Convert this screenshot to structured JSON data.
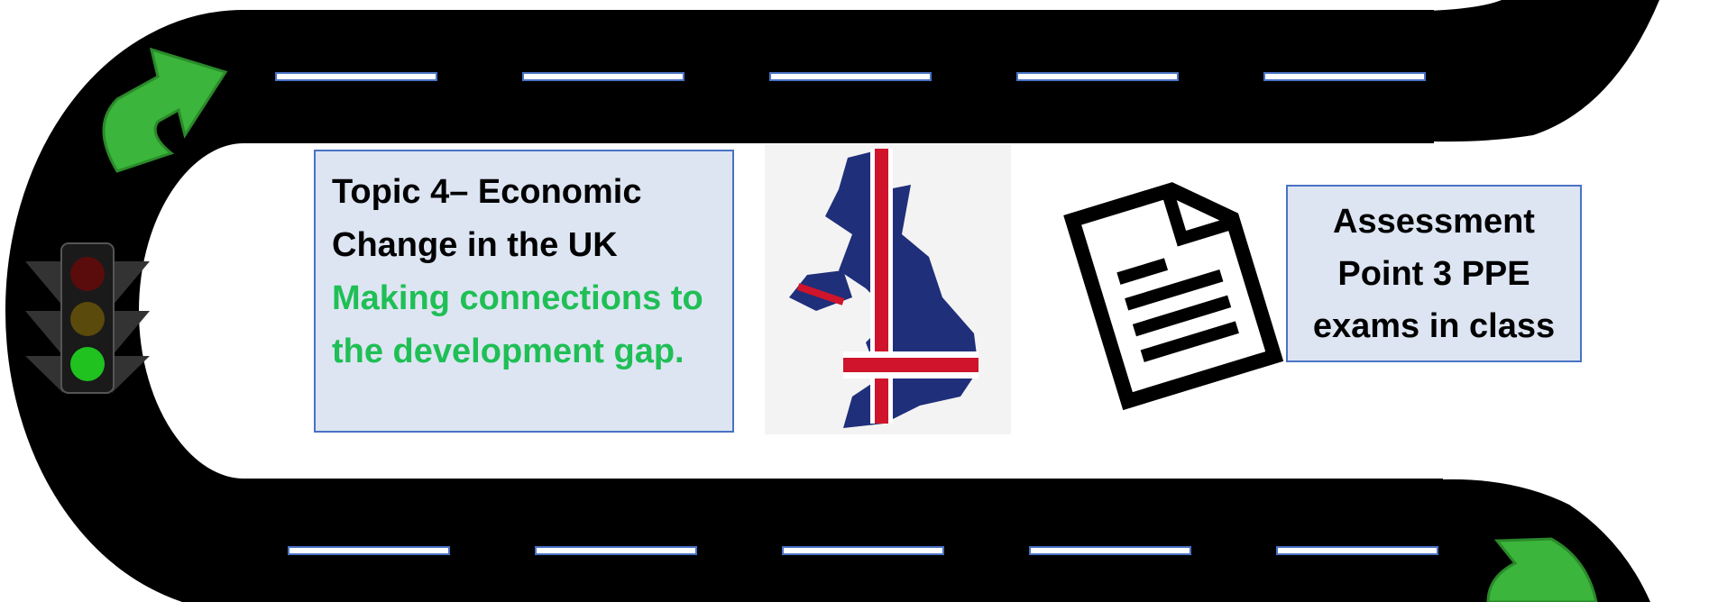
{
  "topic_box": {
    "title": "Topic 4– Economic Change in the UK",
    "subtitle": "Making connections to the development gap."
  },
  "assessment_box": {
    "text": "Assessment Point 3 PPE exams in class"
  }
}
